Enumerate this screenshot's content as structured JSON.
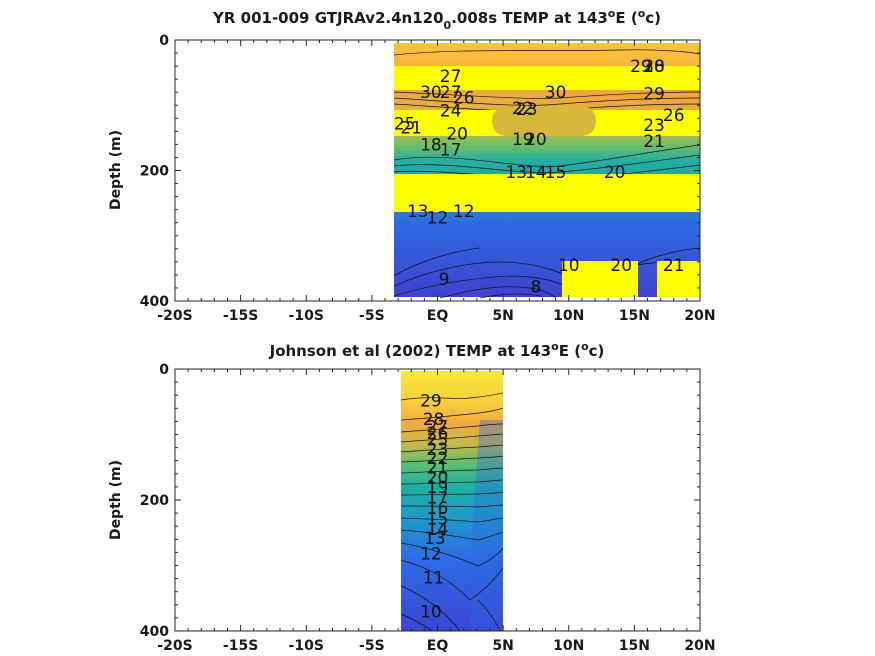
{
  "chart_data": [
    {
      "type": "heatmap",
      "title_main": "YR 001-009 GTJRAv2.4n120",
      "title_sub": "0",
      "title_rest": ".008s TEMP at 143",
      "title_sup": "o",
      "title_end": "E (",
      "title_sup2": "o",
      "title_unit": "c)",
      "ylabel": "Depth (m)",
      "xlabel": "",
      "xlim": [
        -20,
        20
      ],
      "ylim": [
        0,
        400
      ],
      "y_inverted": true,
      "xtick_values": [
        -20,
        -15,
        -10,
        -5,
        0,
        5,
        10,
        15,
        20
      ],
      "xtick_labels": [
        "-20S",
        "-15S",
        "-10S",
        "-5S",
        "EQ",
        "5N",
        "10N",
        "15N",
        "20N"
      ],
      "ytick_values": [
        0,
        200,
        400
      ],
      "ytick_labels": [
        "0",
        "200",
        "400"
      ],
      "data_extent_lat": [
        -3,
        20
      ],
      "missing_bands_depth": [
        [
          40,
          80
        ],
        [
          110,
          150
        ],
        [
          200,
          260
        ]
      ],
      "colormap": "parula",
      "contour_labels": [
        {
          "text": "29",
          "lat": 15.5,
          "depth": 40
        },
        {
          "text": "28",
          "lat": 16.5,
          "depth": 40
        },
        {
          "text": "30",
          "lat": 16.5,
          "depth": 40
        },
        {
          "text": "27",
          "lat": 1.0,
          "depth": 55
        },
        {
          "text": "30",
          "lat": -0.5,
          "depth": 80
        },
        {
          "text": "27",
          "lat": 1.0,
          "depth": 80
        },
        {
          "text": "26",
          "lat": 2.0,
          "depth": 88
        },
        {
          "text": "30",
          "lat": 9.0,
          "depth": 80
        },
        {
          "text": "29",
          "lat": 16.5,
          "depth": 82
        },
        {
          "text": "24",
          "lat": 1.0,
          "depth": 108
        },
        {
          "text": "22",
          "lat": 6.5,
          "depth": 104
        },
        {
          "text": "23",
          "lat": 6.8,
          "depth": 106
        },
        {
          "text": "25",
          "lat": -2.5,
          "depth": 128
        },
        {
          "text": "21",
          "lat": -2.0,
          "depth": 134
        },
        {
          "text": "20",
          "lat": 1.5,
          "depth": 143
        },
        {
          "text": "19",
          "lat": 6.5,
          "depth": 152
        },
        {
          "text": "20",
          "lat": 7.5,
          "depth": 152
        },
        {
          "text": "18",
          "lat": -0.5,
          "depth": 160
        },
        {
          "text": "17",
          "lat": 1.0,
          "depth": 168
        },
        {
          "text": "23",
          "lat": 16.5,
          "depth": 130
        },
        {
          "text": "26",
          "lat": 18.0,
          "depth": 115
        },
        {
          "text": "21",
          "lat": 16.5,
          "depth": 155
        },
        {
          "text": "13",
          "lat": 6.0,
          "depth": 202
        },
        {
          "text": "14",
          "lat": 7.5,
          "depth": 202
        },
        {
          "text": "15",
          "lat": 9.0,
          "depth": 202
        },
        {
          "text": "20",
          "lat": 13.5,
          "depth": 202
        },
        {
          "text": "13",
          "lat": -1.5,
          "depth": 262
        },
        {
          "text": "12",
          "lat": 0.0,
          "depth": 272
        },
        {
          "text": "12",
          "lat": 2.0,
          "depth": 262
        },
        {
          "text": "9",
          "lat": 0.5,
          "depth": 366
        },
        {
          "text": "10",
          "lat": 10.0,
          "depth": 345
        },
        {
          "text": "8",
          "lat": 7.5,
          "depth": 378
        },
        {
          "text": "20",
          "lat": 14.0,
          "depth": 345
        },
        {
          "text": "21",
          "lat": 18.0,
          "depth": 345
        }
      ]
    },
    {
      "type": "heatmap",
      "title_main": "Johnson et al (2002) TEMP at 143",
      "title_sup": "o",
      "title_end": "E (",
      "title_sup2": "o",
      "title_unit": "c)",
      "ylabel": "Depth (m)",
      "xlabel": "",
      "xlim": [
        -20,
        20
      ],
      "ylim": [
        0,
        400
      ],
      "y_inverted": true,
      "xtick_values": [
        -20,
        -15,
        -10,
        -5,
        0,
        5,
        10,
        15,
        20
      ],
      "xtick_labels": [
        "-20S",
        "-15S",
        "-10S",
        "-5S",
        "EQ",
        "5N",
        "10N",
        "15N",
        "20N"
      ],
      "ytick_values": [
        0,
        200,
        400
      ],
      "ytick_labels": [
        "0",
        "200",
        "400"
      ],
      "data_extent_lat": [
        -2.5,
        5
      ],
      "colormap": "parula",
      "contour_labels": [
        {
          "text": "29",
          "lat": -0.5,
          "depth": 48
        },
        {
          "text": "28",
          "lat": -0.3,
          "depth": 76
        },
        {
          "text": "27",
          "lat": 0.0,
          "depth": 88
        },
        {
          "text": "26",
          "lat": 0.0,
          "depth": 98
        },
        {
          "text": "25",
          "lat": 0.0,
          "depth": 108
        },
        {
          "text": "23",
          "lat": 0.0,
          "depth": 122
        },
        {
          "text": "22",
          "lat": 0.0,
          "depth": 136
        },
        {
          "text": "21",
          "lat": 0.0,
          "depth": 150
        },
        {
          "text": "20",
          "lat": 0.0,
          "depth": 166
        },
        {
          "text": "19",
          "lat": 0.0,
          "depth": 180
        },
        {
          "text": "17",
          "lat": 0.0,
          "depth": 196
        },
        {
          "text": "16",
          "lat": 0.0,
          "depth": 212
        },
        {
          "text": "15",
          "lat": 0.0,
          "depth": 228
        },
        {
          "text": "14",
          "lat": 0.0,
          "depth": 244
        },
        {
          "text": "13",
          "lat": -0.2,
          "depth": 258
        },
        {
          "text": "12",
          "lat": -0.5,
          "depth": 282
        },
        {
          "text": "11",
          "lat": -0.3,
          "depth": 318
        },
        {
          "text": "10",
          "lat": -0.5,
          "depth": 370
        }
      ]
    }
  ]
}
